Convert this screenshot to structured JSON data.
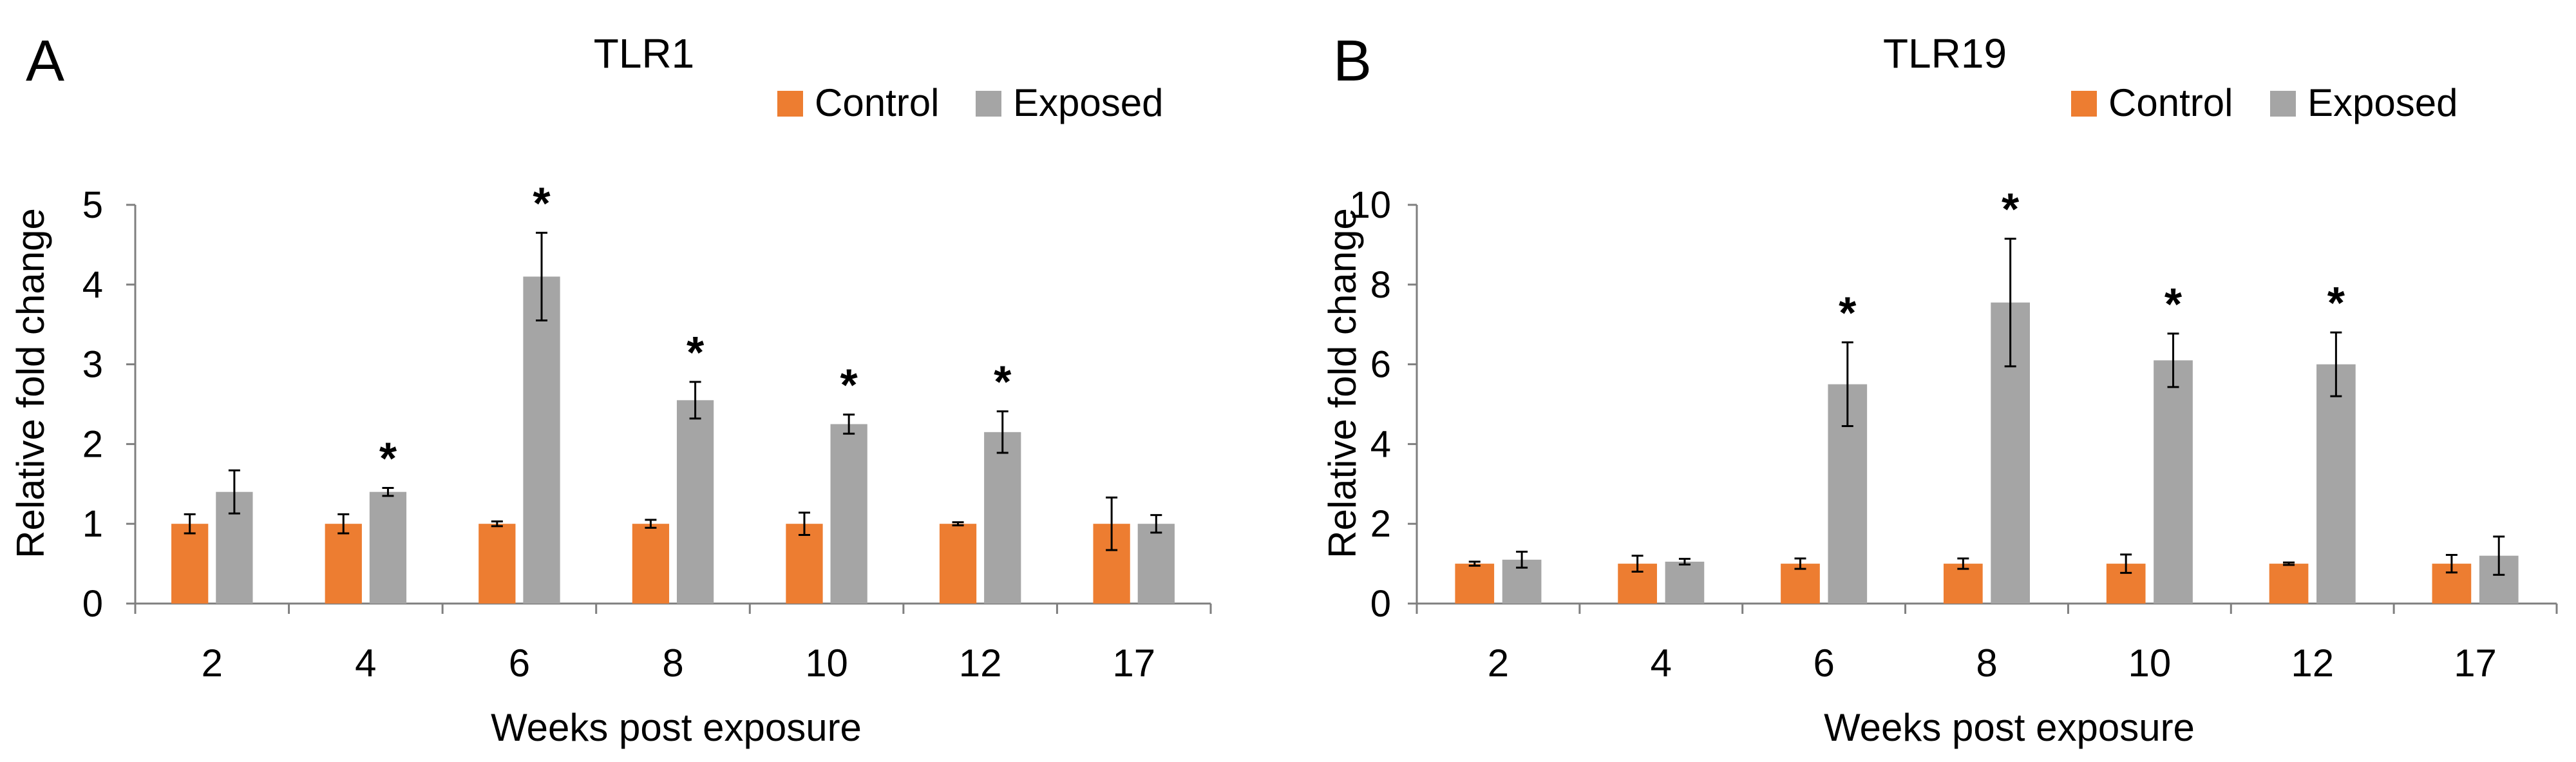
{
  "colors": {
    "control": "#ED7D31",
    "exposed": "#A5A5A5",
    "axis": "#7F7F7F",
    "text": "#000000"
  },
  "chart_data": [
    {
      "type": "bar",
      "panel_label": "A",
      "title": "TLR1",
      "xlabel": "Weeks post exposure",
      "ylabel": "Relative fold change",
      "ylim": [
        0,
        5
      ],
      "yticks": [
        "0",
        "1",
        "2",
        "3",
        "4",
        "5"
      ],
      "categories": [
        "2",
        "4",
        "6",
        "8",
        "10",
        "12",
        "17"
      ],
      "legend_position": "top-right",
      "series": [
        {
          "name": "Control",
          "values": [
            1.0,
            1.0,
            1.0,
            1.0,
            1.0,
            1.0,
            1.0
          ],
          "errors": [
            0.12,
            0.12,
            0.03,
            0.05,
            0.14,
            0.02,
            0.33
          ]
        },
        {
          "name": "Exposed",
          "values": [
            1.4,
            1.4,
            4.1,
            2.55,
            2.25,
            2.15,
            1.0
          ],
          "errors": [
            0.27,
            0.05,
            0.55,
            0.23,
            0.12,
            0.26,
            0.11
          ]
        }
      ],
      "significance": [
        "",
        "*",
        "*",
        "*",
        "*",
        "*",
        ""
      ]
    },
    {
      "type": "bar",
      "panel_label": "B",
      "title": "TLR19",
      "xlabel": "Weeks post exposure",
      "ylabel": "Relative fold change",
      "ylim": [
        0,
        10
      ],
      "yticks": [
        "0",
        "2",
        "4",
        "6",
        "8",
        "10"
      ],
      "categories": [
        "2",
        "4",
        "6",
        "8",
        "10",
        "12",
        "17"
      ],
      "legend_position": "top-right",
      "series": [
        {
          "name": "Control",
          "values": [
            1.0,
            1.0,
            1.0,
            1.0,
            1.0,
            1.0,
            1.0
          ],
          "errors": [
            0.05,
            0.2,
            0.13,
            0.13,
            0.23,
            0.03,
            0.22
          ]
        },
        {
          "name": "Exposed",
          "values": [
            1.1,
            1.05,
            5.5,
            7.55,
            6.1,
            6.0,
            1.2
          ],
          "errors": [
            0.2,
            0.07,
            1.05,
            1.6,
            0.67,
            0.8,
            0.48
          ]
        }
      ],
      "significance": [
        "",
        "",
        "*",
        "*",
        "*",
        "*",
        ""
      ]
    }
  ]
}
